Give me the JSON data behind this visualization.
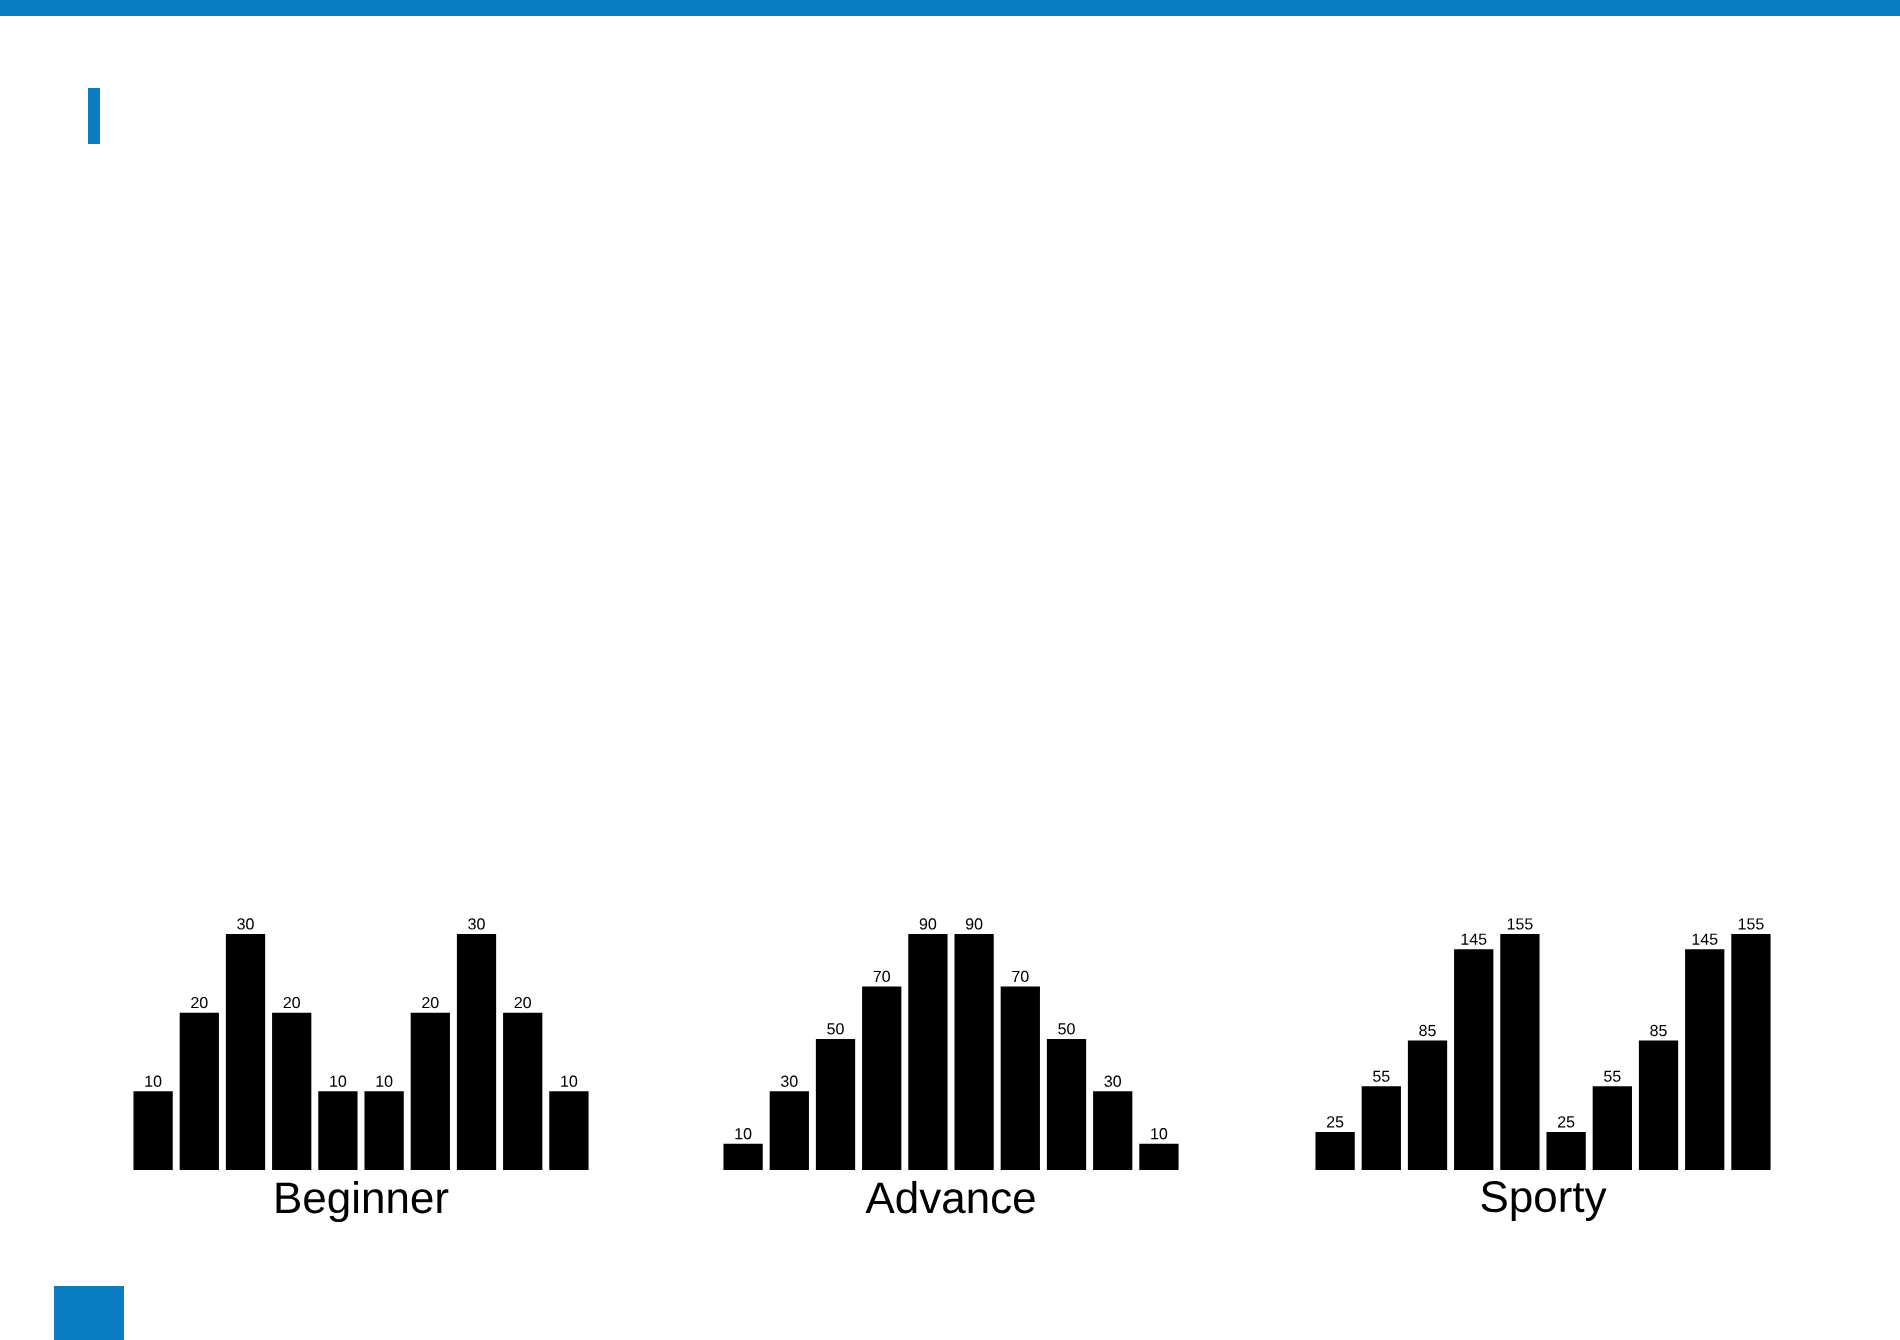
{
  "chart_data": [
    {
      "type": "bar",
      "xlabel": "Beginner",
      "categories": [
        null,
        null,
        null,
        null,
        null,
        null,
        null,
        null,
        null,
        null
      ],
      "values": [
        10,
        20,
        30,
        20,
        10,
        10,
        20,
        30,
        20,
        10
      ],
      "color": "#000000",
      "data_labels": true
    },
    {
      "type": "bar",
      "xlabel": "Advance",
      "categories": [
        null,
        null,
        null,
        null,
        null,
        null,
        null,
        null,
        null,
        null
      ],
      "values": [
        10,
        30,
        50,
        70,
        90,
        90,
        70,
        50,
        30,
        10
      ],
      "color": "#000000",
      "data_labels": true
    },
    {
      "type": "bar",
      "xlabel": "Sporty",
      "categories": [
        null,
        null,
        null,
        null,
        null,
        null,
        null,
        null,
        null,
        null
      ],
      "values": [
        25,
        55,
        85,
        145,
        155,
        25,
        55,
        85,
        145,
        155
      ],
      "color": "#000000",
      "data_labels": true
    }
  ]
}
